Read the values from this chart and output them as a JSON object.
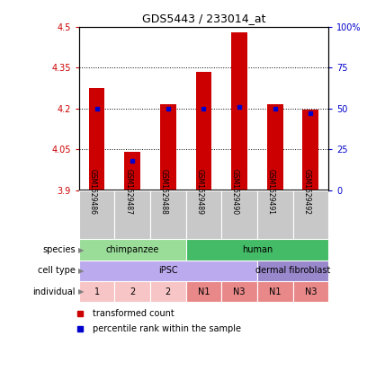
{
  "title": "GDS5443 / 233014_at",
  "samples": [
    "GSM1529486",
    "GSM1529487",
    "GSM1529488",
    "GSM1529489",
    "GSM1529490",
    "GSM1529491",
    "GSM1529492"
  ],
  "transformed_counts": [
    4.275,
    4.04,
    4.215,
    4.335,
    4.48,
    4.215,
    4.195
  ],
  "percentile_ranks": [
    50,
    18,
    50,
    50,
    51,
    50,
    47
  ],
  "ylim_left": [
    3.9,
    4.5
  ],
  "yticks_left": [
    3.9,
    4.05,
    4.2,
    4.35,
    4.5
  ],
  "ytick_labels_left": [
    "3.9",
    "4.05",
    "4.2",
    "4.35",
    "4.5"
  ],
  "ylim_right": [
    0,
    100
  ],
  "yticks_right": [
    0,
    25,
    50,
    75,
    100
  ],
  "ytick_labels_right": [
    "0",
    "25",
    "50",
    "75",
    "100%"
  ],
  "bar_color": "#cc0000",
  "dot_color": "#0000cc",
  "bar_width": 0.45,
  "species_groups": [
    {
      "label": "chimpanzee",
      "start": 0,
      "end": 2,
      "color": "#99dd99"
    },
    {
      "label": "human",
      "start": 3,
      "end": 6,
      "color": "#44bb66"
    }
  ],
  "cell_type_groups": [
    {
      "label": "iPSC",
      "start": 0,
      "end": 4,
      "color": "#bbaaee"
    },
    {
      "label": "dermal fibroblast",
      "start": 5,
      "end": 6,
      "color": "#9988cc"
    }
  ],
  "individual_labels": [
    "1",
    "2",
    "2",
    "N1",
    "N3",
    "N1",
    "N3"
  ],
  "individual_light_color": "#f7c5c5",
  "individual_dark_color": "#e88888",
  "individual_dark_indices": [
    3,
    4,
    5,
    6
  ],
  "row_labels": [
    "species",
    "cell type",
    "individual"
  ],
  "legend_red_label": "transformed count",
  "legend_blue_label": "percentile rank within the sample",
  "grid_color": "black",
  "xlabel_bg_color": "#c8c8c8",
  "fig_bg": "#ffffff"
}
